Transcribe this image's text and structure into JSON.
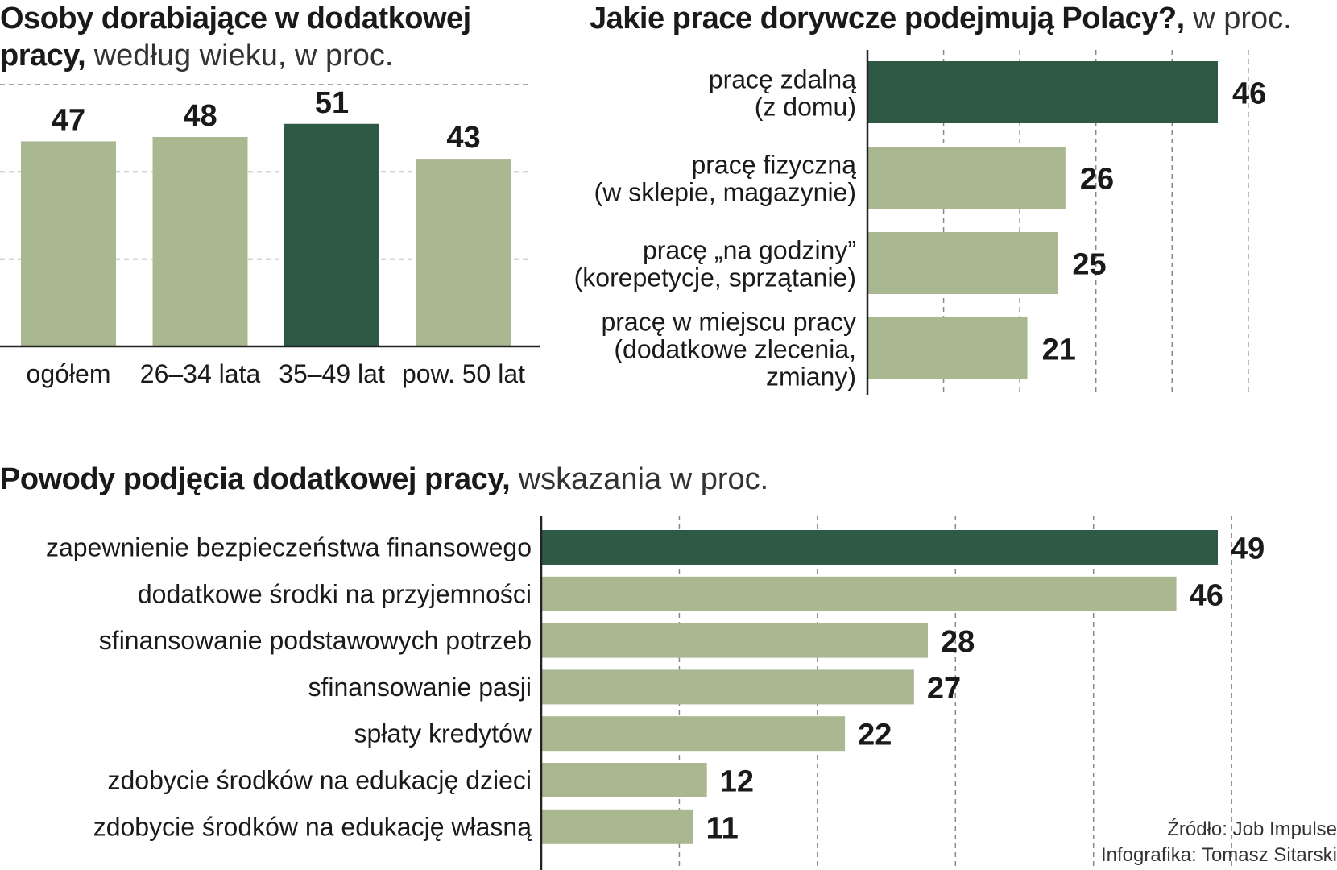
{
  "colors": {
    "highlight": "#2e5a45",
    "bar": "#aab892",
    "axis": "#222222",
    "grid": "#888888"
  },
  "titles": {
    "c1_bold": "Osoby dorabiające w dodatkowej pracy,",
    "c1_rest": " według wieku, w proc.",
    "c2_bold": "Jakie prace dorywcze podejmują Polacy?,",
    "c2_rest": " w proc.",
    "c3_bold": "Powody podjęcia dodatkowej pracy,",
    "c3_rest": " wskazania w proc."
  },
  "chart_data": [
    {
      "type": "bar",
      "title": "Osoby dorabiające w dodatkowej pracy, według wieku, w proc.",
      "categories": [
        "ogółem",
        "26–34 lata",
        "35–49 lat",
        "pow. 50 lat"
      ],
      "values": [
        47,
        48,
        51,
        43
      ],
      "highlight_index": 2,
      "ylim": [
        0,
        60
      ],
      "grid": true
    },
    {
      "type": "bar",
      "orientation": "horizontal",
      "title": "Jakie prace dorywcze podejmują Polacy?, w proc.",
      "categories": [
        [
          "pracę zdalną",
          "(z domu)"
        ],
        [
          "pracę fizyczną",
          "(w sklepie, magazynie)"
        ],
        [
          "pracę  „na godziny”",
          "(korepetycje, sprzątanie)"
        ],
        [
          "pracę w miejscu pracy",
          "(dodatkowe zlecenia,",
          "zmiany)"
        ]
      ],
      "values": [
        46,
        26,
        25,
        21
      ],
      "highlight_index": 0,
      "xlim": [
        0,
        50
      ],
      "grid": true
    },
    {
      "type": "bar",
      "orientation": "horizontal",
      "title": "Powody podjęcia dodatkowej pracy, wskazania w proc.",
      "categories": [
        "zapewnienie bezpieczeństwa finansowego",
        "dodatkowe środki na przyjemności",
        "sfinansowanie podstawowych potrzeb",
        "sfinansowanie pasji",
        "spłaty kredytów",
        "zdobycie środków na edukację dzieci",
        "zdobycie środków na edukację własną"
      ],
      "values": [
        49,
        46,
        28,
        27,
        22,
        12,
        11
      ],
      "highlight_index": 0,
      "xlim": [
        0,
        50
      ],
      "grid": true
    }
  ],
  "footer": {
    "source": "Źródło: Job Impulse",
    "author": "Infografika: Tomasz Sitarski"
  }
}
